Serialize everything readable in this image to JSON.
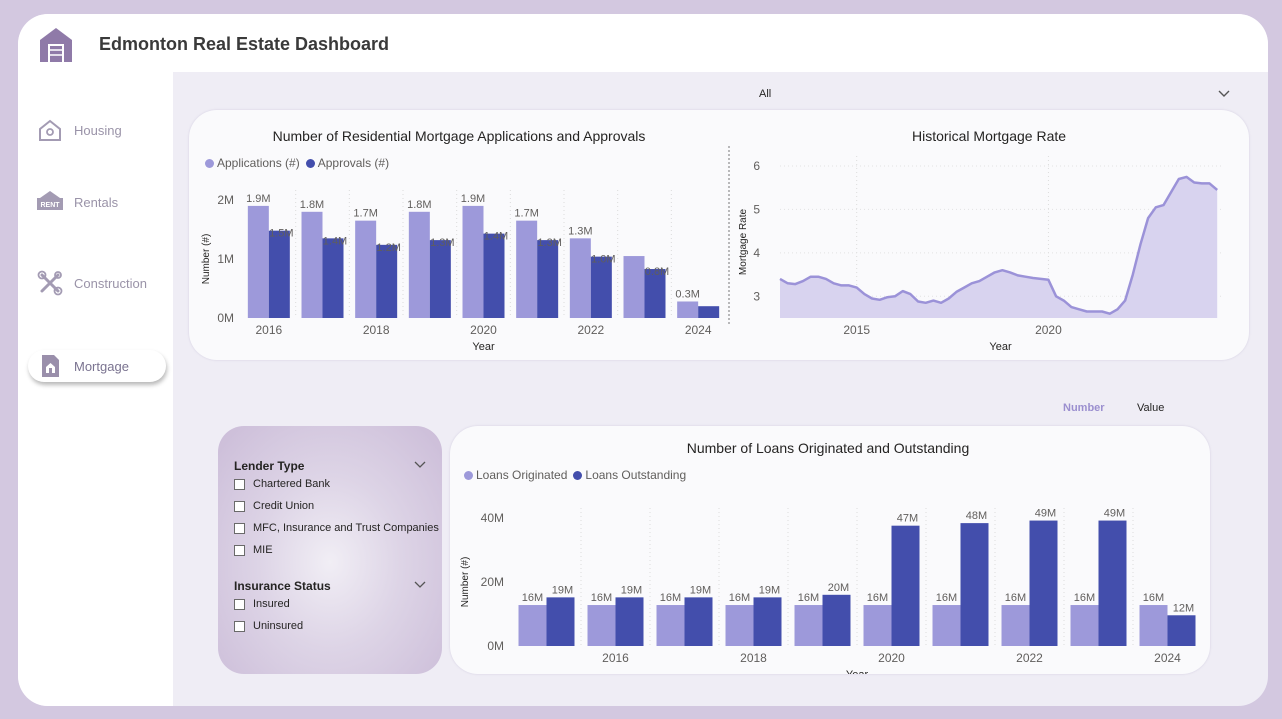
{
  "app": {
    "title": "Edmonton Real Estate Dashboard",
    "logo_icon": "house-logo-icon"
  },
  "sidebar": {
    "items": [
      {
        "label": "Housing",
        "icon": "house-outline-icon"
      },
      {
        "label": "Rentals",
        "icon": "rent-sign-icon"
      },
      {
        "label": "Construction",
        "icon": "tools-icon"
      },
      {
        "label": "Mortgage",
        "icon": "document-house-icon",
        "active": true
      }
    ]
  },
  "year_filter": {
    "value": "All"
  },
  "toggle": {
    "number_label": "Number",
    "value_label": "Value",
    "active": "Number"
  },
  "filters": {
    "lender_type": {
      "header": "Lender Type",
      "options": [
        "Chartered Bank",
        "Credit Union",
        "MFC, Insurance and Trust Companies",
        "MIE"
      ]
    },
    "insurance_status": {
      "header": "Insurance Status",
      "options": [
        "Insured",
        "Uninsured"
      ]
    }
  },
  "colors": {
    "light_series": "#9d99da",
    "dark_series": "#434eac",
    "area_fill": "#d8d3ef",
    "area_line": "#9b92d8",
    "accent": "#9b8fcf"
  },
  "chart_data": [
    {
      "id": "applications",
      "type": "bar",
      "title": "Number of Residential Mortgage Applications and Approvals",
      "xlabel": "Year",
      "ylabel": "Number (#)",
      "ylim": [
        0,
        2000000
      ],
      "yticks": [
        "0M",
        "1M",
        "2M"
      ],
      "xticks": [
        "2016",
        "2018",
        "2020",
        "2022",
        "2024"
      ],
      "categories": [
        "2016",
        "2017",
        "2018",
        "2019",
        "2020",
        "2021",
        "2022",
        "2023",
        "2024"
      ],
      "series": [
        {
          "name": "Applications (#)",
          "values": [
            1900000,
            1800000,
            1650000,
            1800000,
            1900000,
            1650000,
            1350000,
            1050000,
            280000
          ],
          "labels": [
            "1.9M",
            "1.8M",
            "1.7M",
            "1.8M",
            "1.9M",
            "1.7M",
            "1.3M",
            "",
            "0.3M"
          ]
        },
        {
          "name": "Approvals (#)",
          "values": [
            1480000,
            1350000,
            1240000,
            1320000,
            1430000,
            1320000,
            1040000,
            830000,
            200000
          ],
          "labels": [
            "1.5M",
            "1.4M",
            "1.2M",
            "1.3M",
            "1.4M",
            "1.3M",
            "1.0M",
            "0.8M",
            ""
          ]
        }
      ],
      "legend_position": "top-left"
    },
    {
      "id": "mortgage-rate",
      "type": "area",
      "title": "Historical Mortgage Rate",
      "xlabel": "Year",
      "ylabel": "Mortgage Rate",
      "xlim": [
        2013.0,
        2024.5
      ],
      "ylim": [
        2.5,
        6.0
      ],
      "yticks": [
        "3",
        "4",
        "5",
        "6"
      ],
      "xticks": [
        "2015",
        "2020"
      ],
      "x": [
        2013.0,
        2013.2,
        2013.4,
        2013.6,
        2013.8,
        2014.0,
        2014.2,
        2014.4,
        2014.6,
        2014.8,
        2015.0,
        2015.2,
        2015.4,
        2015.6,
        2015.8,
        2016.0,
        2016.2,
        2016.4,
        2016.6,
        2016.8,
        2017.0,
        2017.2,
        2017.4,
        2017.6,
        2017.8,
        2018.0,
        2018.2,
        2018.4,
        2018.6,
        2018.8,
        2019.0,
        2019.2,
        2019.4,
        2019.6,
        2019.8,
        2020.0,
        2020.2,
        2020.4,
        2020.6,
        2020.8,
        2021.0,
        2021.2,
        2021.4,
        2021.6,
        2021.8,
        2022.0,
        2022.2,
        2022.4,
        2022.6,
        2022.8,
        2023.0,
        2023.2,
        2023.4,
        2023.6,
        2023.8,
        2024.0,
        2024.2,
        2024.4
      ],
      "y": [
        3.4,
        3.3,
        3.28,
        3.35,
        3.45,
        3.45,
        3.4,
        3.3,
        3.25,
        3.25,
        3.2,
        3.05,
        2.95,
        2.92,
        2.98,
        3.0,
        3.12,
        3.05,
        2.88,
        2.85,
        2.9,
        2.85,
        2.95,
        3.1,
        3.2,
        3.3,
        3.35,
        3.45,
        3.55,
        3.6,
        3.55,
        3.48,
        3.45,
        3.42,
        3.4,
        3.38,
        3.0,
        2.9,
        2.75,
        2.7,
        2.65,
        2.65,
        2.65,
        2.6,
        2.7,
        2.9,
        3.5,
        4.2,
        4.8,
        5.05,
        5.1,
        5.4,
        5.7,
        5.75,
        5.62,
        5.6,
        5.6,
        5.45
      ],
      "grid": true
    },
    {
      "id": "loans",
      "type": "bar",
      "title": "Number of Loans Originated and Outstanding",
      "xlabel": "Year",
      "ylabel": "Number (#)",
      "ylim": [
        0,
        50000000
      ],
      "yticks": [
        "0M",
        "20M",
        "40M"
      ],
      "xticks": [
        "2016",
        "2018",
        "2020",
        "2022",
        "2024"
      ],
      "categories": [
        "2015",
        "2016",
        "2017",
        "2018",
        "2019",
        "2020",
        "2021",
        "2022",
        "2023",
        "2024"
      ],
      "series": [
        {
          "name": "Loans Originated",
          "values": [
            16000000,
            16000000,
            16000000,
            16000000,
            16000000,
            16000000,
            16000000,
            16000000,
            16000000,
            16000000
          ],
          "labels": [
            "16M",
            "16M",
            "16M",
            "16M",
            "16M",
            "16M",
            "16M",
            "16M",
            "16M",
            "16M"
          ]
        },
        {
          "name": "Loans Outstanding",
          "values": [
            19000000,
            19000000,
            19000000,
            19000000,
            20000000,
            47000000,
            48000000,
            49000000,
            49000000,
            12000000
          ],
          "labels": [
            "19M",
            "19M",
            "19M",
            "19M",
            "20M",
            "47M",
            "48M",
            "49M",
            "49M",
            "12M"
          ]
        }
      ],
      "legend_position": "top-left"
    }
  ]
}
